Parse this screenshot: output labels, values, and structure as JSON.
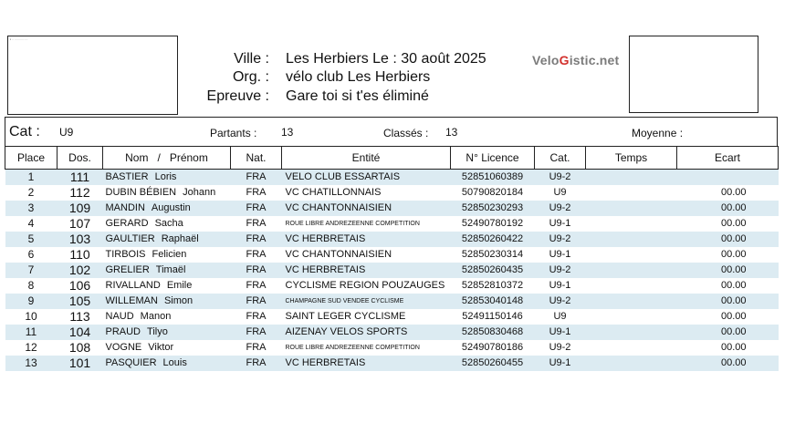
{
  "header": {
    "ville_label": "Ville :",
    "ville_value": "Les Herbiers  Le :  30 août 2025",
    "org_label": "Org. :",
    "org_value": "vélo club Les Herbiers",
    "epreuve_label": "Epreuve :",
    "epreuve_value": "Gare toi si t'es éliminé",
    "brand_part1": "Velo",
    "brand_part2": "G",
    "brand_part3": "istic.net",
    "brand_accent_color": "#d2312d"
  },
  "category_bar": {
    "cat_label": "Cat :",
    "cat_value": "U9",
    "partants_label": "Partants :",
    "partants_value": "13",
    "classes_label": "Classés :",
    "classes_value": "13",
    "moyenne_label": "Moyenne :"
  },
  "table": {
    "columns": [
      "Place",
      "Dos.",
      "Nom   /   Prénom",
      "Nat.",
      "Entité",
      "N° Licence",
      "Cat.",
      "Temps",
      "Ecart"
    ],
    "rows": [
      {
        "place": "1",
        "dos": "111",
        "nom": "BASTIER",
        "prenom": "Loris",
        "nat": "FRA",
        "entite": "VELO CLUB ESSARTAIS",
        "licence": "52851060389",
        "cat": "U9-2",
        "temps": "",
        "ecart": ""
      },
      {
        "place": "2",
        "dos": "112",
        "nom": "DUBIN BÉBIEN",
        "prenom": "Johann",
        "nat": "FRA",
        "entite": "VC CHATILLONNAIS",
        "licence": "50790820184",
        "cat": "U9",
        "temps": "",
        "ecart": "00.00"
      },
      {
        "place": "3",
        "dos": "109",
        "nom": "MANDIN",
        "prenom": "Augustin",
        "nat": "FRA",
        "entite": "VC CHANTONNAISIEN",
        "licence": "52850230293",
        "cat": "U9-2",
        "temps": "",
        "ecart": "00.00"
      },
      {
        "place": "4",
        "dos": "107",
        "nom": "GERARD",
        "prenom": "Sacha",
        "nat": "FRA",
        "entite": "ROUE LIBRE ANDREZEENNE COMPETITION",
        "licence": "52490780192",
        "cat": "U9-1",
        "temps": "",
        "ecart": "00.00"
      },
      {
        "place": "5",
        "dos": "103",
        "nom": "GAULTIER",
        "prenom": "Raphaël",
        "nat": "FRA",
        "entite": "VC HERBRETAIS",
        "licence": "52850260422",
        "cat": "U9-2",
        "temps": "",
        "ecart": "00.00"
      },
      {
        "place": "6",
        "dos": "110",
        "nom": "TIRBOIS",
        "prenom": "Felicien",
        "nat": "FRA",
        "entite": "VC CHANTONNAISIEN",
        "licence": "52850230314",
        "cat": "U9-1",
        "temps": "",
        "ecart": "00.00"
      },
      {
        "place": "7",
        "dos": "102",
        "nom": "GRELIER",
        "prenom": "Timaël",
        "nat": "FRA",
        "entite": "VC HERBRETAIS",
        "licence": "52850260435",
        "cat": "U9-2",
        "temps": "",
        "ecart": "00.00"
      },
      {
        "place": "8",
        "dos": "106",
        "nom": "RIVALLAND",
        "prenom": "Emile",
        "nat": "FRA",
        "entite": "CYCLISME REGION POUZAUGES",
        "licence": "52852810372",
        "cat": "U9-1",
        "temps": "",
        "ecart": "00.00"
      },
      {
        "place": "9",
        "dos": "105",
        "nom": "WILLEMAN",
        "prenom": "Simon",
        "nat": "FRA",
        "entite": "CHAMPAGNE SUD VENDEE CYCLISME",
        "licence": "52853040148",
        "cat": "U9-2",
        "temps": "",
        "ecart": "00.00"
      },
      {
        "place": "10",
        "dos": "113",
        "nom": "NAUD",
        "prenom": "Manon",
        "nat": "FRA",
        "entite": "SAINT LEGER CYCLISME",
        "licence": "52491150146",
        "cat": "U9",
        "temps": "",
        "ecart": "00.00"
      },
      {
        "place": "11",
        "dos": "104",
        "nom": "PRAUD",
        "prenom": "Tilyo",
        "nat": "FRA",
        "entite": "AIZENAY VELOS SPORTS",
        "licence": "52850830468",
        "cat": "U9-1",
        "temps": "",
        "ecart": "00.00"
      },
      {
        "place": "12",
        "dos": "108",
        "nom": "VOGNE",
        "prenom": "Viktor",
        "nat": "FRA",
        "entite": "ROUE LIBRE ANDREZEENNE COMPETITION",
        "licence": "52490780186",
        "cat": "U9-2",
        "temps": "",
        "ecart": "00.00"
      },
      {
        "place": "13",
        "dos": "101",
        "nom": "PASQUIER",
        "prenom": "Louis",
        "nat": "FRA",
        "entite": "VC HERBRETAIS",
        "licence": "52850260455",
        "cat": "U9-1",
        "temps": "",
        "ecart": "00.00"
      }
    ]
  }
}
